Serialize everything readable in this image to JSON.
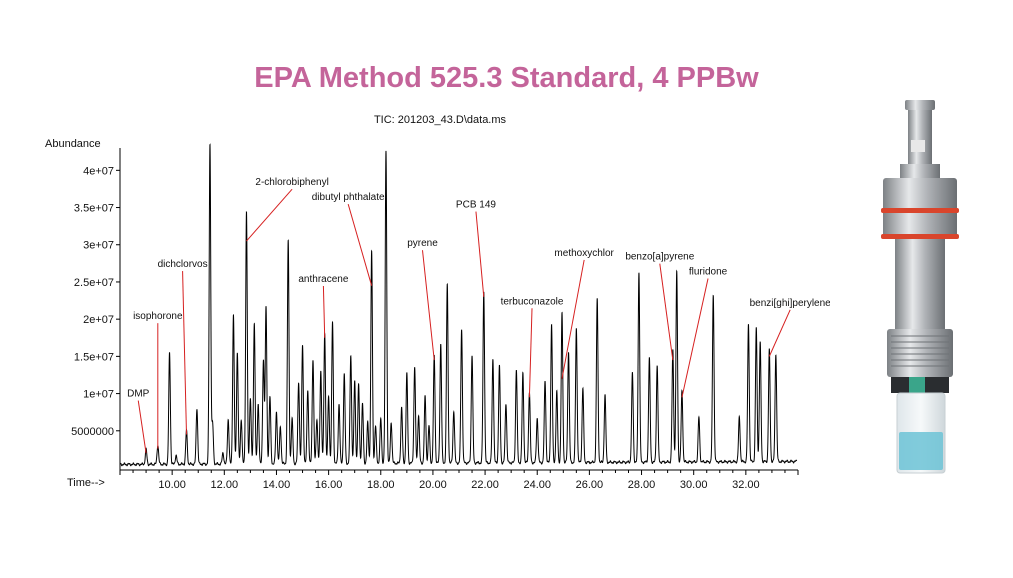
{
  "title": "EPA Method 525.3 Standard, 4 PPBw",
  "colors": {
    "title": "#c4649a",
    "trace": "#000000",
    "annotation_line": "#d62020",
    "device_metal": "#b9bcbf",
    "device_ring": "#d9452c",
    "device_liquid": "#6cc3d6"
  },
  "device_image": "sample-vial-adapter-illustration",
  "chart_data": {
    "type": "line",
    "subtitle": "TIC: 201203_43.D\\data.ms",
    "ylabel": "Abundance",
    "xlabel": "Time-->",
    "xlim": [
      8.0,
      34.0
    ],
    "ylim": [
      0,
      43000000
    ],
    "x_ticks": [
      10,
      12,
      14,
      16,
      18,
      20,
      22,
      24,
      26,
      28,
      30,
      32
    ],
    "x_tick_labels": [
      "10.00",
      "12.00",
      "14.00",
      "16.00",
      "18.00",
      "20.00",
      "22.00",
      "24.00",
      "26.00",
      "28.00",
      "30.00",
      "32.00"
    ],
    "y_ticks": [
      5000000,
      10000000,
      15000000,
      20000000,
      25000000,
      30000000,
      35000000,
      40000000
    ],
    "y_tick_labels": [
      "5000000",
      "1e+07",
      "1.5e+07",
      "2e+07",
      "2.5e+07",
      "3e+07",
      "3.5e+07",
      "4e+07"
    ],
    "grid": false,
    "baseline": 800000,
    "peaks": [
      {
        "t": 9.0,
        "h": 2000000
      },
      {
        "t": 9.45,
        "h": 2600000
      },
      {
        "t": 9.9,
        "h": 15000000
      },
      {
        "t": 10.15,
        "h": 1200000
      },
      {
        "t": 10.55,
        "h": 4500000
      },
      {
        "t": 10.95,
        "h": 7500000
      },
      {
        "t": 11.45,
        "h": 43000000
      },
      {
        "t": 11.55,
        "h": 5500000
      },
      {
        "t": 11.95,
        "h": 1500000
      },
      {
        "t": 12.15,
        "h": 6000000
      },
      {
        "t": 12.35,
        "h": 20000000
      },
      {
        "t": 12.5,
        "h": 15000000
      },
      {
        "t": 12.65,
        "h": 6000000
      },
      {
        "t": 12.85,
        "h": 34000000
      },
      {
        "t": 13.0,
        "h": 9000000
      },
      {
        "t": 13.15,
        "h": 19000000
      },
      {
        "t": 13.3,
        "h": 8000000
      },
      {
        "t": 13.5,
        "h": 14000000
      },
      {
        "t": 13.6,
        "h": 21000000
      },
      {
        "t": 13.75,
        "h": 9000000
      },
      {
        "t": 14.0,
        "h": 7000000
      },
      {
        "t": 14.15,
        "h": 5000000
      },
      {
        "t": 14.45,
        "h": 30000000
      },
      {
        "t": 14.6,
        "h": 6000000
      },
      {
        "t": 14.85,
        "h": 11000000
      },
      {
        "t": 15.0,
        "h": 16000000
      },
      {
        "t": 15.2,
        "h": 10000000
      },
      {
        "t": 15.4,
        "h": 14000000
      },
      {
        "t": 15.55,
        "h": 6000000
      },
      {
        "t": 15.7,
        "h": 12500000
      },
      {
        "t": 15.85,
        "h": 17500000
      },
      {
        "t": 16.0,
        "h": 9000000
      },
      {
        "t": 16.15,
        "h": 19000000
      },
      {
        "t": 16.4,
        "h": 8000000
      },
      {
        "t": 16.6,
        "h": 12000000
      },
      {
        "t": 16.85,
        "h": 14500000
      },
      {
        "t": 17.0,
        "h": 11000000
      },
      {
        "t": 17.15,
        "h": 10500000
      },
      {
        "t": 17.3,
        "h": 8000000
      },
      {
        "t": 17.5,
        "h": 5500000
      },
      {
        "t": 17.65,
        "h": 28500000
      },
      {
        "t": 17.8,
        "h": 5000000
      },
      {
        "t": 18.0,
        "h": 6000000
      },
      {
        "t": 18.2,
        "h": 42000000
      },
      {
        "t": 18.4,
        "h": 5500000
      },
      {
        "t": 18.8,
        "h": 7500000
      },
      {
        "t": 19.0,
        "h": 12000000
      },
      {
        "t": 19.3,
        "h": 13000000
      },
      {
        "t": 19.45,
        "h": 6500000
      },
      {
        "t": 19.7,
        "h": 9000000
      },
      {
        "t": 19.85,
        "h": 5000000
      },
      {
        "t": 20.05,
        "h": 14500000
      },
      {
        "t": 20.3,
        "h": 16000000
      },
      {
        "t": 20.55,
        "h": 24000000
      },
      {
        "t": 20.8,
        "h": 7000000
      },
      {
        "t": 21.1,
        "h": 18000000
      },
      {
        "t": 21.5,
        "h": 14500000
      },
      {
        "t": 21.95,
        "h": 23000000
      },
      {
        "t": 22.3,
        "h": 14000000
      },
      {
        "t": 22.55,
        "h": 13000000
      },
      {
        "t": 22.8,
        "h": 8000000
      },
      {
        "t": 23.2,
        "h": 12500000
      },
      {
        "t": 23.45,
        "h": 12000000
      },
      {
        "t": 23.7,
        "h": 9500000
      },
      {
        "t": 24.0,
        "h": 6000000
      },
      {
        "t": 24.3,
        "h": 11000000
      },
      {
        "t": 24.55,
        "h": 18500000
      },
      {
        "t": 24.75,
        "h": 9500000
      },
      {
        "t": 24.95,
        "h": 20000000
      },
      {
        "t": 25.2,
        "h": 15000000
      },
      {
        "t": 25.5,
        "h": 18000000
      },
      {
        "t": 25.75,
        "h": 10000000
      },
      {
        "t": 26.3,
        "h": 22000000
      },
      {
        "t": 26.6,
        "h": 9000000
      },
      {
        "t": 27.65,
        "h": 12000000
      },
      {
        "t": 27.9,
        "h": 25500000
      },
      {
        "t": 28.3,
        "h": 14000000
      },
      {
        "t": 28.6,
        "h": 13000000
      },
      {
        "t": 29.2,
        "h": 15000000
      },
      {
        "t": 29.35,
        "h": 25500000
      },
      {
        "t": 29.55,
        "h": 9500000
      },
      {
        "t": 30.2,
        "h": 6000000
      },
      {
        "t": 30.75,
        "h": 22500000
      },
      {
        "t": 31.75,
        "h": 6000000
      },
      {
        "t": 32.1,
        "h": 18500000
      },
      {
        "t": 32.4,
        "h": 18000000
      },
      {
        "t": 32.55,
        "h": 16000000
      },
      {
        "t": 32.9,
        "h": 15000000
      },
      {
        "t": 33.15,
        "h": 14500000
      }
    ],
    "annotations": [
      {
        "label": "DMP",
        "label_t": 8.7,
        "label_y": 9600000,
        "t": 9.0,
        "y": 2000000
      },
      {
        "label": "isophorone",
        "label_t": 9.45,
        "label_y": 20000000,
        "t": 9.45,
        "y": 2600000
      },
      {
        "label": "dichclorvos",
        "label_t": 10.4,
        "label_y": 27000000,
        "t": 10.55,
        "y": 4500000
      },
      {
        "label": "2-chlorobiphenyl",
        "label_t": 14.6,
        "label_y": 38000000,
        "t": 12.85,
        "y": 30500000
      },
      {
        "label": "dibutyl phthalate",
        "label_t": 16.75,
        "label_y": 36000000,
        "t": 17.65,
        "y": 24500000
      },
      {
        "label": "anthracene",
        "label_t": 15.8,
        "label_y": 25000000,
        "t": 15.85,
        "y": 17500000
      },
      {
        "label": "pyrene",
        "label_t": 19.6,
        "label_y": 29800000,
        "t": 20.05,
        "y": 14500000
      },
      {
        "label": "PCB 149",
        "label_t": 21.65,
        "label_y": 35000000,
        "t": 21.95,
        "y": 23000000
      },
      {
        "label": "terbuconazole",
        "label_t": 23.8,
        "label_y": 22000000,
        "t": 23.7,
        "y": 9500000
      },
      {
        "label": "methoxychlor",
        "label_t": 25.8,
        "label_y": 28500000,
        "t": 24.95,
        "y": 12000000
      },
      {
        "label": "benzo[a]pyrene",
        "label_t": 28.7,
        "label_y": 28000000,
        "t": 29.2,
        "y": 14500000
      },
      {
        "label": "fluridone",
        "label_t": 30.55,
        "label_y": 26000000,
        "t": 29.55,
        "y": 9500000
      },
      {
        "label": "benzi[ghi]perylene",
        "label_t": 33.7,
        "label_y": 21800000,
        "t": 32.9,
        "y": 15000000
      }
    ]
  }
}
